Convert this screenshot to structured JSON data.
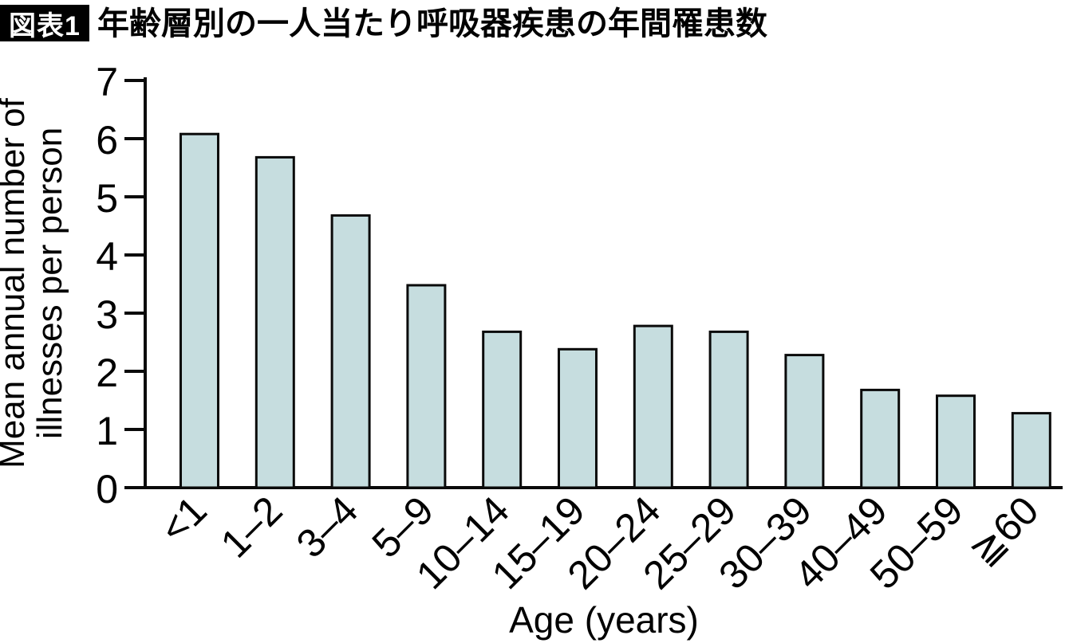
{
  "header": {
    "badge": "図表1",
    "title": "年齢層別の一人当たり呼吸器疾患の年間罹患数"
  },
  "chart_data": {
    "type": "bar",
    "title": "年齢層別の一人当たり呼吸器疾患の年間罹患数",
    "categories": [
      "<1",
      "1–2",
      "3–4",
      "5–9",
      "10–14",
      "15–19",
      "20–24",
      "25–29",
      "30–39",
      "40–49",
      "50–59",
      "≧60"
    ],
    "values": [
      6.1,
      5.7,
      4.7,
      3.5,
      2.7,
      2.4,
      2.8,
      2.7,
      2.3,
      1.7,
      1.6,
      1.3
    ],
    "xlabel": "Age (years)",
    "ylabel_lines": [
      "Mean annual number of",
      "illnesses per person"
    ],
    "ylabel": "Mean annual number of illnesses per person",
    "ylim": [
      0,
      7
    ],
    "yticks": [
      0,
      1,
      2,
      3,
      4,
      5,
      6,
      7
    ],
    "grid": false,
    "legend": null,
    "colors": {
      "bar_fill": "#c6dddf",
      "bar_stroke": "#0a0a0a",
      "axis": "#0a0a0a",
      "text": "#000000",
      "badge_bg": "#000000",
      "badge_text": "#ffffff"
    }
  }
}
